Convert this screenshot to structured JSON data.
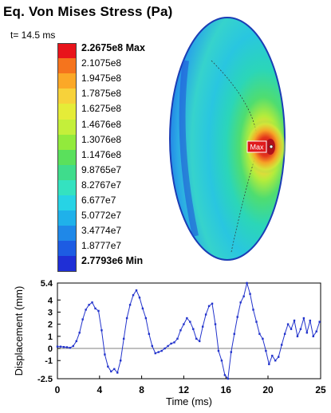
{
  "header": {
    "title": "Eq. Von Mises Stress (Pa)",
    "time_label": "t= 14.5 ms"
  },
  "legend": {
    "entries": [
      {
        "label": "2.2675e8 Max",
        "color": "#e8141b",
        "bold": true
      },
      {
        "label": "2.1075e8",
        "color": "#f5741d"
      },
      {
        "label": "1.9475e8",
        "color": "#fba827"
      },
      {
        "label": "1.7875e8",
        "color": "#f7d23a"
      },
      {
        "label": "1.6275e8",
        "color": "#e5ec38"
      },
      {
        "label": "1.4676e8",
        "color": "#c4ef3a"
      },
      {
        "label": "1.3076e8",
        "color": "#92ea3c"
      },
      {
        "label": "1.1476e8",
        "color": "#5ae05c"
      },
      {
        "label": "9.8765e7",
        "color": "#3fdc8c"
      },
      {
        "label": "8.2767e7",
        "color": "#34e2c0"
      },
      {
        "label": "6.677e7",
        "color": "#27d3e5"
      },
      {
        "label": "5.0772e7",
        "color": "#1fb1ea"
      },
      {
        "label": "3.4774e7",
        "color": "#1f88e8"
      },
      {
        "label": "1.8777e7",
        "color": "#1d5ce3"
      },
      {
        "label": "2.7793e6 Min",
        "color": "#1f2fd6",
        "bold": true
      }
    ]
  },
  "model": {
    "max_marker": "Max"
  },
  "chart_data": {
    "type": "line",
    "xlabel": "Time (ms)",
    "ylabel": "Displacement (mm)",
    "xlim": [
      0,
      25
    ],
    "ylim": [
      -2.5,
      5.4
    ],
    "x_ticks": [
      "0",
      "4",
      "8",
      "12",
      "16",
      "20",
      "25"
    ],
    "y_ticks": [
      "5.4",
      "4",
      "3",
      "2",
      "1",
      "0",
      "-1",
      "-2.5"
    ],
    "color": "#2233cc",
    "series": [
      {
        "x": [
          0,
          0.3,
          0.6,
          0.9,
          1.2,
          1.5,
          1.8,
          2.1,
          2.4,
          2.7,
          3.0,
          3.3,
          3.6,
          3.9,
          4.2,
          4.5,
          4.8,
          5.1,
          5.4,
          5.7,
          6.0,
          6.3,
          6.6,
          6.9,
          7.2,
          7.5,
          7.8,
          8.1,
          8.4,
          8.7,
          9.0,
          9.3,
          9.6,
          9.9,
          10.2,
          10.5,
          10.8,
          11.1,
          11.4,
          11.7,
          12.0,
          12.3,
          12.6,
          12.9,
          13.2,
          13.5,
          13.8,
          14.1,
          14.4,
          14.7,
          15.0,
          15.3,
          15.6,
          15.9,
          16.2,
          16.5,
          16.8,
          17.1,
          17.4,
          17.7,
          18.0,
          18.3,
          18.6,
          18.9,
          19.2,
          19.5,
          19.8,
          20.1,
          20.4,
          20.7,
          21.0,
          21.3,
          21.6,
          21.9,
          22.2,
          22.5,
          22.8,
          23.1,
          23.4,
          23.7,
          24.0,
          24.3,
          24.6,
          24.9
        ],
        "y": [
          0.15,
          0.15,
          0.12,
          0.1,
          0.05,
          0.2,
          0.6,
          1.3,
          2.4,
          3.2,
          3.6,
          3.8,
          3.3,
          3.1,
          1.5,
          -0.5,
          -1.5,
          -1.9,
          -1.7,
          -2.0,
          -1.0,
          0.8,
          2.5,
          3.6,
          4.4,
          4.8,
          4.2,
          3.3,
          2.5,
          1.2,
          0.2,
          -0.4,
          -0.3,
          -0.2,
          0.0,
          0.2,
          0.4,
          0.5,
          0.8,
          1.5,
          2.0,
          2.5,
          2.2,
          1.6,
          0.8,
          0.6,
          1.8,
          2.8,
          3.5,
          3.7,
          2.0,
          -0.2,
          -1.0,
          -2.2,
          -2.5,
          -0.3,
          1.2,
          2.6,
          3.8,
          4.3,
          5.4,
          4.5,
          3.2,
          2.2,
          1.2,
          0.8,
          -0.2,
          -1.3,
          -0.6,
          -1.0,
          -0.7,
          0.3,
          1.2,
          2.0,
          1.6,
          2.3,
          1.0,
          1.6,
          2.5,
          1.3,
          2.3,
          1.0,
          1.4,
          2.2
        ]
      }
    ]
  }
}
